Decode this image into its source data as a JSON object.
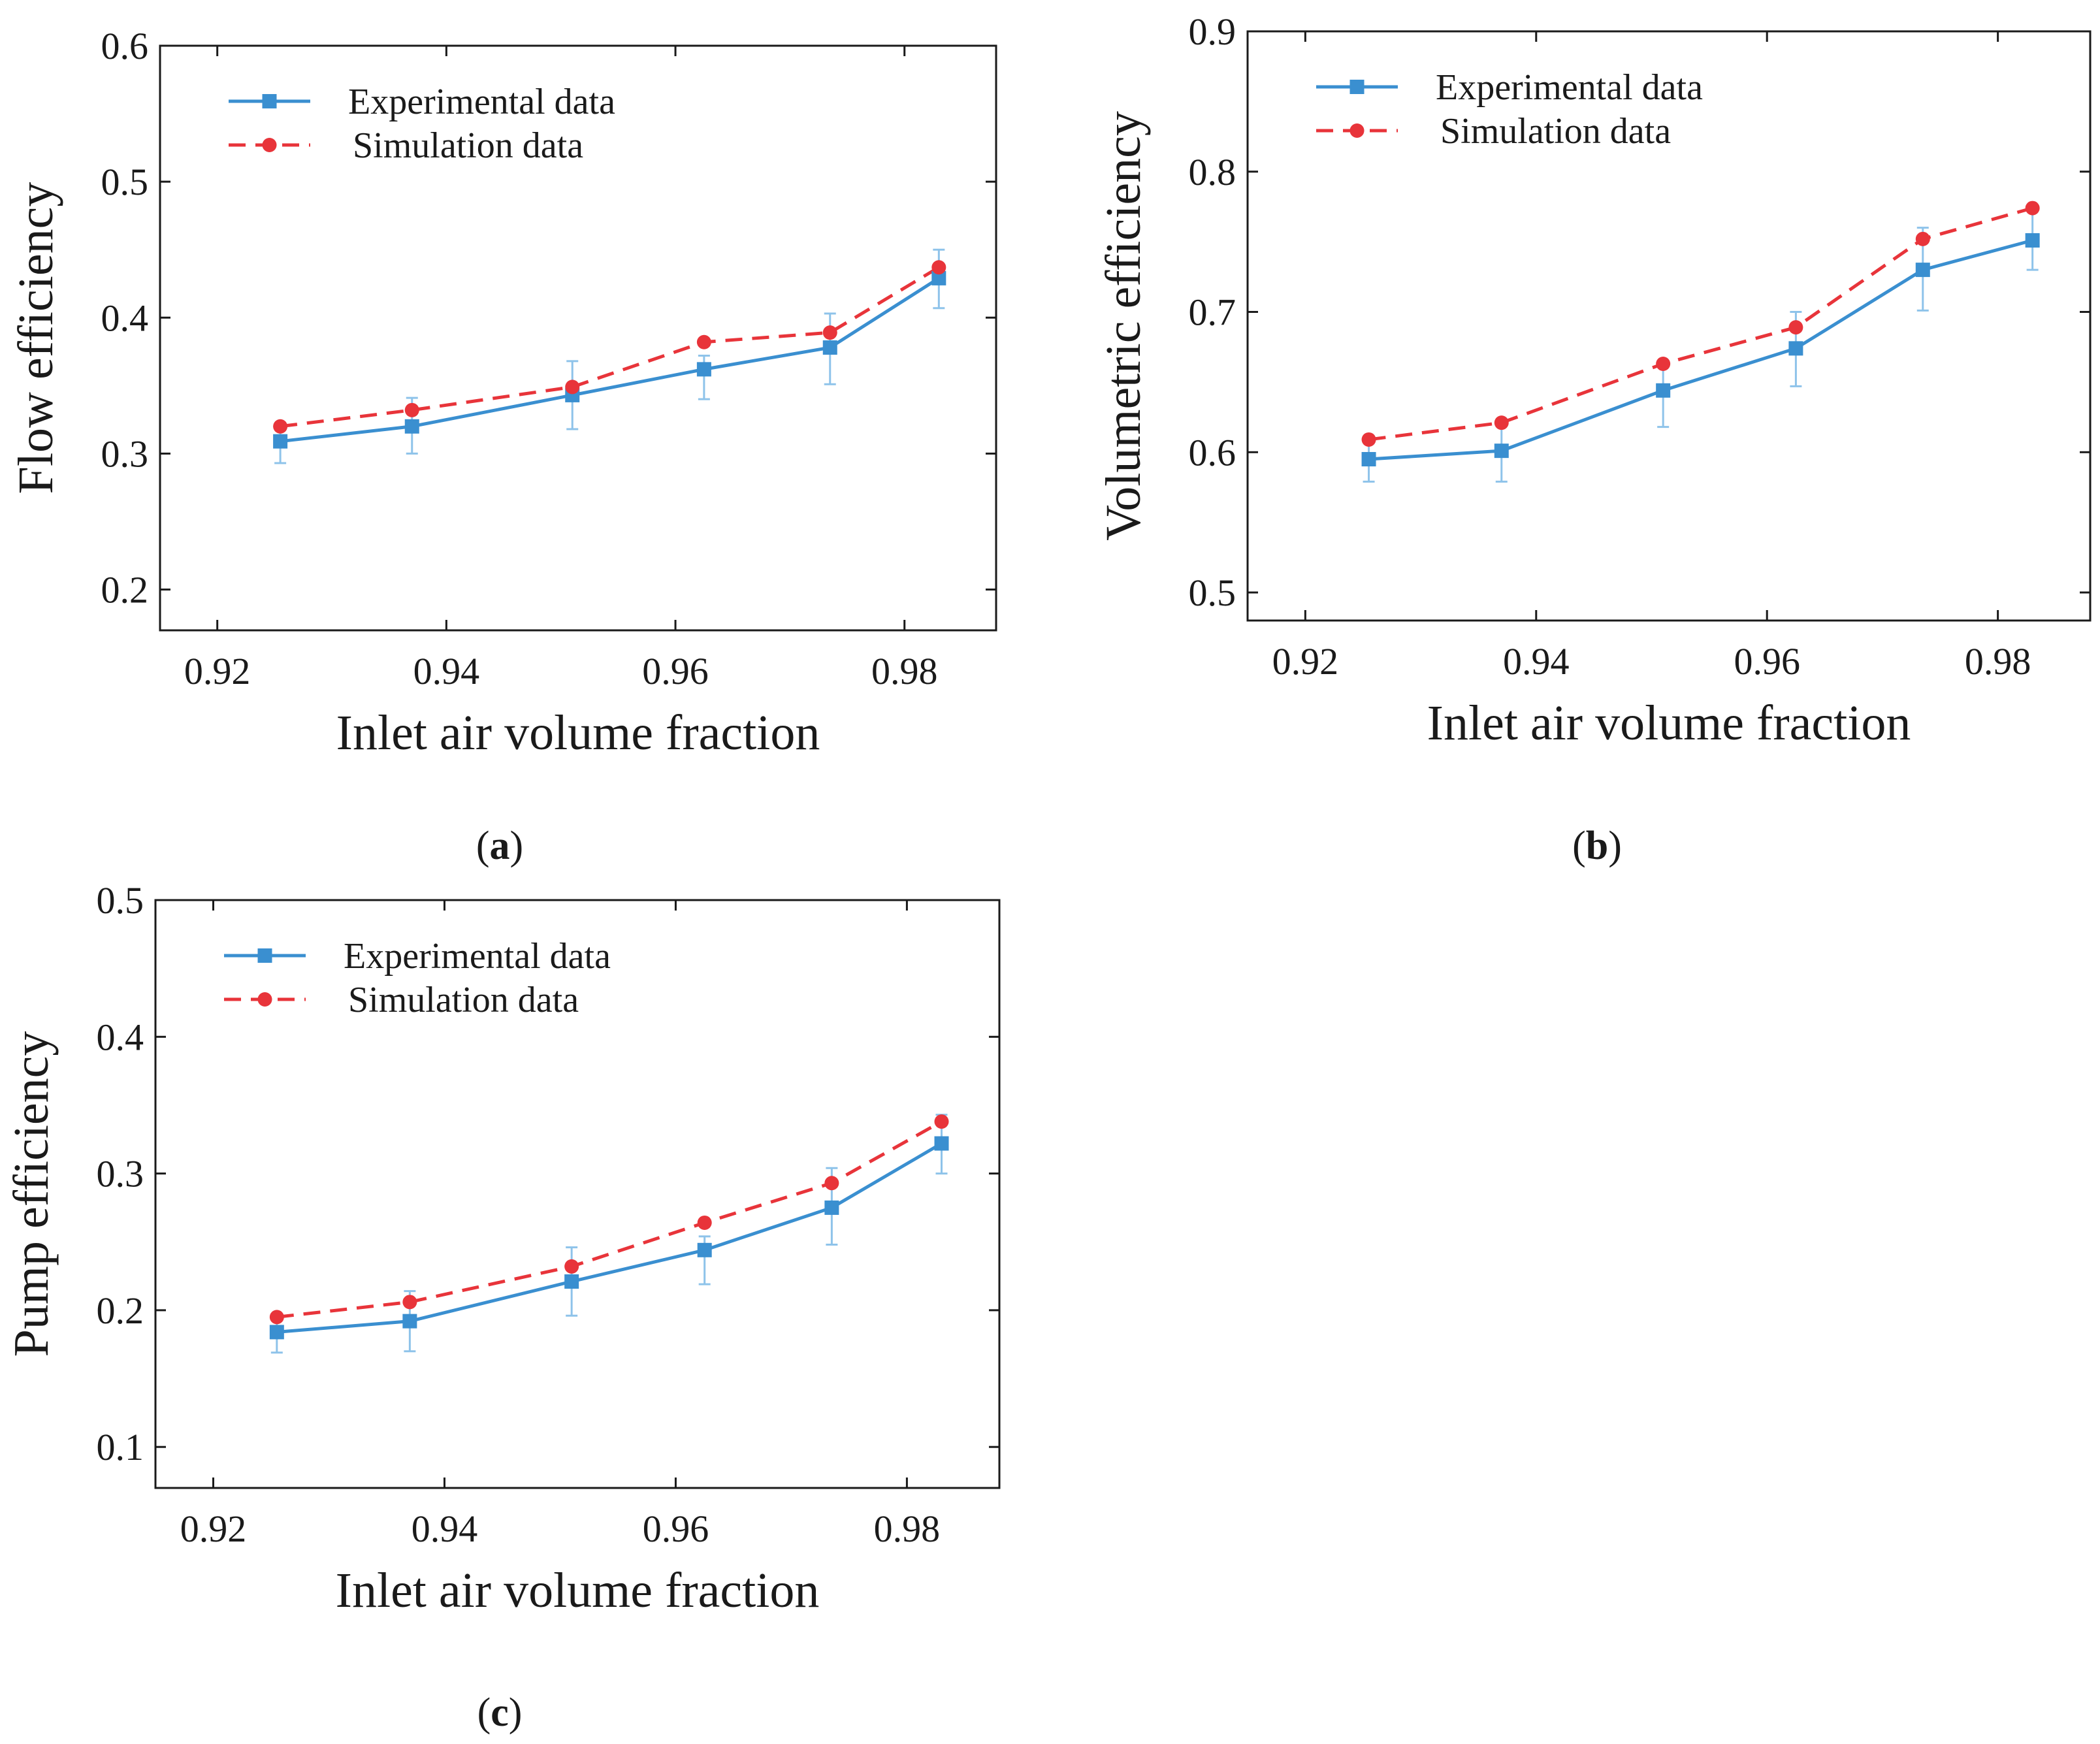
{
  "figure": {
    "panels": [
      "a",
      "b",
      "c"
    ]
  },
  "chart_data": [
    {
      "id": "a",
      "type": "line",
      "panel_label": "a",
      "xlabel": "Inlet air volume fraction",
      "ylabel": "Flow efficiency",
      "xlim": [
        0.915,
        0.988
      ],
      "ylim": [
        0.17,
        0.6
      ],
      "xticks": [
        0.92,
        0.94,
        0.96,
        0.98
      ],
      "xtick_labels": [
        "0.92",
        "0.94",
        "0.96",
        "0.98"
      ],
      "yticks": [
        0.2,
        0.3,
        0.4,
        0.5,
        0.6
      ],
      "ytick_labels": [
        "0.2",
        "0.3",
        "0.4",
        "0.5",
        "0.6"
      ],
      "legend_position": "top-left",
      "x": [
        0.9255,
        0.937,
        0.951,
        0.9625,
        0.9735,
        0.983
      ],
      "series": [
        {
          "name": "Experimental data",
          "values": [
            0.309,
            0.32,
            0.343,
            0.362,
            0.378,
            0.429
          ],
          "err_low": [
            0.016,
            0.02,
            0.025,
            0.022,
            0.027,
            0.022
          ],
          "err_high": [
            0.012,
            0.021,
            0.025,
            0.01,
            0.025,
            0.021
          ]
        },
        {
          "name": "Simulation data",
          "values": [
            0.32,
            0.332,
            0.349,
            0.382,
            0.389,
            0.437
          ]
        }
      ]
    },
    {
      "id": "b",
      "type": "line",
      "panel_label": "b",
      "xlabel": "Inlet air volume fraction",
      "ylabel": "Volumetric efficiency",
      "xlim": [
        0.915,
        0.988
      ],
      "ylim": [
        0.48,
        0.9
      ],
      "xticks": [
        0.92,
        0.94,
        0.96,
        0.98
      ],
      "xtick_labels": [
        "0.92",
        "0.94",
        "0.96",
        "0.98"
      ],
      "yticks": [
        0.5,
        0.6,
        0.7,
        0.8,
        0.9
      ],
      "ytick_labels": [
        "0.5",
        "0.6",
        "0.7",
        "0.8",
        "0.9"
      ],
      "legend_position": "top-left",
      "x": [
        0.9255,
        0.937,
        0.951,
        0.9625,
        0.9735,
        0.983
      ],
      "series": [
        {
          "name": "Experimental data",
          "values": [
            0.595,
            0.601,
            0.644,
            0.674,
            0.73,
            0.751
          ],
          "err_low": [
            0.016,
            0.022,
            0.026,
            0.027,
            0.029,
            0.021
          ],
          "err_high": [
            0.012,
            0.021,
            0.02,
            0.026,
            0.03,
            0.023
          ]
        },
        {
          "name": "Simulation data",
          "values": [
            0.609,
            0.621,
            0.663,
            0.689,
            0.752,
            0.774
          ]
        }
      ]
    },
    {
      "id": "c",
      "type": "line",
      "panel_label": "c",
      "xlabel": "Inlet air volume fraction",
      "ylabel": "Pump efficiency",
      "xlim": [
        0.915,
        0.988
      ],
      "ylim": [
        0.07,
        0.5
      ],
      "xticks": [
        0.92,
        0.94,
        0.96,
        0.98
      ],
      "xtick_labels": [
        "0.92",
        "0.94",
        "0.96",
        "0.98"
      ],
      "yticks": [
        0.1,
        0.2,
        0.3,
        0.4,
        0.5
      ],
      "ytick_labels": [
        "0.1",
        "0.2",
        "0.3",
        "0.4",
        "0.5"
      ],
      "legend_position": "top-left",
      "x": [
        0.9255,
        0.937,
        0.951,
        0.9625,
        0.9735,
        0.983
      ],
      "series": [
        {
          "name": "Experimental data",
          "values": [
            0.184,
            0.192,
            0.221,
            0.244,
            0.275,
            0.322
          ],
          "err_low": [
            0.015,
            0.022,
            0.025,
            0.025,
            0.027,
            0.022
          ],
          "err_high": [
            0.012,
            0.022,
            0.025,
            0.01,
            0.029,
            0.021
          ]
        },
        {
          "name": "Simulation data",
          "values": [
            0.195,
            0.206,
            0.232,
            0.264,
            0.293,
            0.338
          ]
        }
      ]
    }
  ]
}
